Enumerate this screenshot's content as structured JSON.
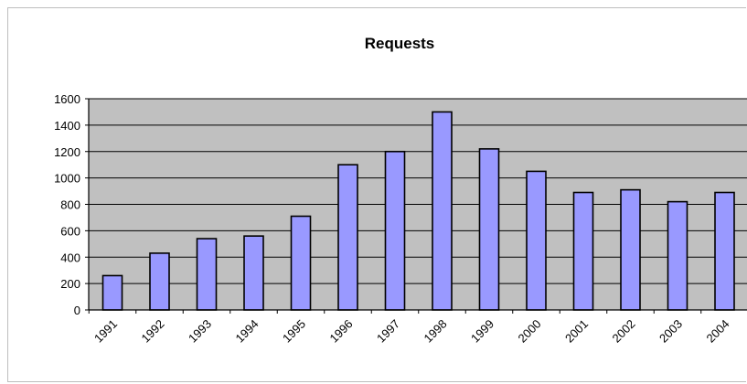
{
  "chart_data": {
    "type": "bar",
    "title": "Requests",
    "xlabel": "",
    "ylabel": "",
    "categories": [
      "1991",
      "1992",
      "1993",
      "1994",
      "1995",
      "1996",
      "1997",
      "1998",
      "1999",
      "2000",
      "2001",
      "2002",
      "2003",
      "2004"
    ],
    "values": [
      260,
      430,
      540,
      560,
      710,
      1100,
      1200,
      1500,
      1220,
      1050,
      890,
      910,
      820,
      890
    ],
    "ylim": [
      0,
      1600
    ],
    "yticks": [
      0,
      200,
      400,
      600,
      800,
      1000,
      1200,
      1400,
      1600
    ],
    "grid": true,
    "legend": "none",
    "colors": {
      "bar_fill": "#9999ff",
      "bar_stroke": "#000000",
      "plot_background": "#c0c0c0",
      "gridline": "#000000"
    }
  }
}
